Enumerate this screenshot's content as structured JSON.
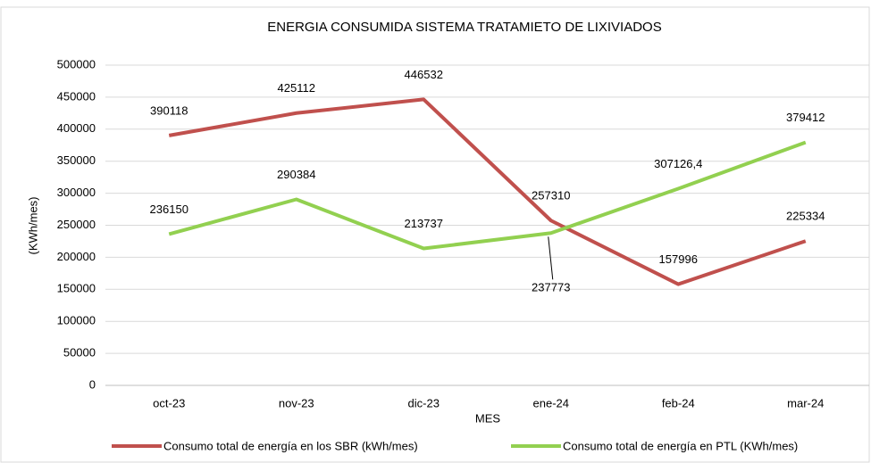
{
  "chart_data": {
    "type": "line",
    "title": "ENERGIA CONSUMIDA SISTEMA TRATAMIETO DE LIXIVIADOS",
    "x_label": "MES",
    "y_label": "(KWh/mes)",
    "categories": [
      "oct-23",
      "nov-23",
      "dic-23",
      "ene-24",
      "feb-24",
      "mar-24"
    ],
    "series": [
      {
        "name": "Consumo total de energía en los SBR (kWh/mes)",
        "color": "#c0504d",
        "values": [
          390118,
          425112,
          446532,
          257310,
          157996,
          225334
        ]
      },
      {
        "name": "Consumo total de energía en PTL (KWh/mes)",
        "color": "#92d050",
        "values": [
          236150,
          290384,
          213737,
          237773,
          307126.4,
          379412
        ],
        "value_labels": [
          "236150",
          "290384",
          "213737",
          "237773",
          "307126,4",
          "379412"
        ]
      }
    ],
    "ylim": [
      0,
      500000
    ],
    "yticks": [
      0,
      50000,
      100000,
      150000,
      200000,
      250000,
      300000,
      350000,
      400000,
      450000,
      500000
    ],
    "grid": true,
    "legend": "bottom"
  }
}
